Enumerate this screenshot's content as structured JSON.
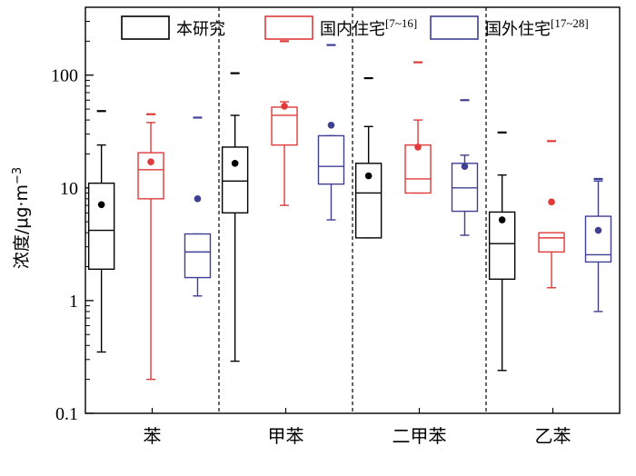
{
  "chart_data": {
    "type": "box",
    "ylabel": "浓度/μg·m",
    "ylabel_sup": "−3",
    "yscale": "log",
    "ylim": [
      0.1,
      400
    ],
    "yticks": [
      0.1,
      1,
      10,
      100
    ],
    "ytick_labels": [
      "0.1",
      "1",
      "10",
      "100"
    ],
    "categories": [
      "苯",
      "甲苯",
      "二甲苯",
      "乙苯"
    ],
    "legend_position": "top",
    "series": [
      {
        "name": "本研究",
        "name_sup": "",
        "color": "#000000",
        "boxes": [
          {
            "category": "苯",
            "whisker_low": 0.35,
            "q1": 1.9,
            "median": 4.2,
            "q3": 11,
            "whisker_high": 24,
            "mean": 7.1,
            "outlier": 48
          },
          {
            "category": "甲苯",
            "whisker_low": 0.29,
            "q1": 6.0,
            "median": 11.5,
            "q3": 23,
            "whisker_high": 44,
            "mean": 16.5,
            "outlier": 104
          },
          {
            "category": "二甲苯",
            "whisker_low": 3.6,
            "q1": 3.6,
            "median": 9.0,
            "q3": 16.5,
            "whisker_high": 35,
            "mean": 12.8,
            "outlier": 94
          },
          {
            "category": "乙苯",
            "whisker_low": 0.24,
            "q1": 1.55,
            "median": 3.2,
            "q3": 6.1,
            "whisker_high": 13,
            "mean": 5.2,
            "outlier": 31
          }
        ]
      },
      {
        "name": "国内住宅",
        "name_sup": "[7~16]",
        "color": "#e03a3a",
        "boxes": [
          {
            "category": "苯",
            "whisker_low": 0.2,
            "q1": 8.0,
            "median": 14.5,
            "q3": 20.5,
            "whisker_high": 38,
            "mean": 17,
            "outlier": 45
          },
          {
            "category": "甲苯",
            "whisker_low": 7.0,
            "q1": 24,
            "median": 44,
            "q3": 52,
            "whisker_high": 58,
            "mean": 53,
            "outlier": 200
          },
          {
            "category": "二甲苯",
            "whisker_low": 9.0,
            "q1": 9.0,
            "median": 12,
            "q3": 24,
            "whisker_high": 40,
            "mean": 23,
            "outlier": 130
          },
          {
            "category": "乙苯",
            "whisker_low": 1.3,
            "q1": 2.7,
            "median": 3.6,
            "q3": 4.0,
            "whisker_high": 4.0,
            "mean": 7.5,
            "outlier": 26
          }
        ]
      },
      {
        "name": "国外住宅",
        "name_sup": "[17~28]",
        "color": "#3f3f94",
        "boxes": [
          {
            "category": "苯",
            "whisker_low": 1.1,
            "q1": 1.6,
            "median": 2.7,
            "q3": 3.9,
            "whisker_high": 3.9,
            "mean": 8.0,
            "outlier": 42
          },
          {
            "category": "甲苯",
            "whisker_low": 5.2,
            "q1": 10.8,
            "median": 15.5,
            "q3": 29,
            "whisker_high": 29,
            "mean": 36,
            "outlier": 185
          },
          {
            "category": "二甲苯",
            "whisker_low": 3.8,
            "q1": 6.2,
            "median": 10,
            "q3": 16.5,
            "whisker_high": 19.5,
            "mean": 15.5,
            "outlier": 60
          },
          {
            "category": "乙苯",
            "whisker_low": 0.8,
            "q1": 2.2,
            "median": 2.55,
            "q3": 5.6,
            "whisker_high": 11.5,
            "mean": 4.2,
            "outlier": 12
          }
        ]
      }
    ]
  }
}
